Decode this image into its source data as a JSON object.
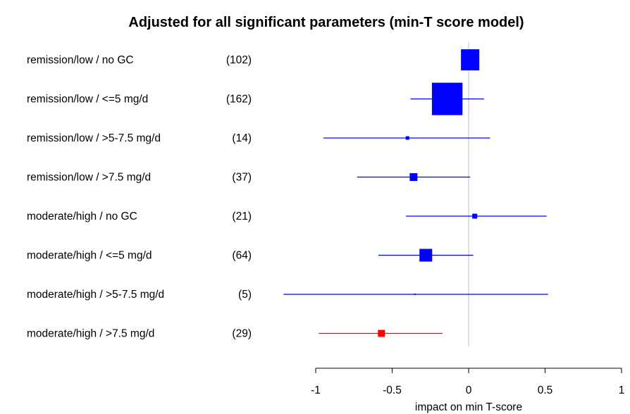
{
  "chart_data": {
    "type": "forest",
    "title": "Adjusted for all significant parameters (min-T score model)",
    "xlabel": "impact on min T-score",
    "xlim": [
      -1,
      1
    ],
    "xticks": [
      "-1",
      "-0.5",
      "0",
      "0.5",
      "1"
    ],
    "reference_line": 0,
    "rows": [
      {
        "label": "remission/low / no GC",
        "n": "(102)",
        "estimate": 0.0,
        "ci": [
          0.0,
          0.0
        ],
        "color": "#0000ff"
      },
      {
        "label": "remission/low / <=5 mg/d",
        "n": "(162)",
        "estimate": -0.14,
        "ci": [
          -0.38,
          0.1
        ],
        "color": "#0000ff"
      },
      {
        "label": "remission/low / >5-7.5 mg/d",
        "n": "(14)",
        "estimate": -0.4,
        "ci": [
          -0.95,
          0.14
        ],
        "color": "#0000ff"
      },
      {
        "label": "remission/low / >7.5 mg/d",
        "n": "(37)",
        "estimate": -0.36,
        "ci": [
          -0.73,
          0.01
        ],
        "color": "#0000ff"
      },
      {
        "label": "moderate/high / no GC",
        "n": "(21)",
        "estimate": 0.04,
        "ci": [
          -0.41,
          0.51
        ],
        "color": "#0000ff"
      },
      {
        "label": "moderate/high / <=5 mg/d",
        "n": "(64)",
        "estimate": -0.28,
        "ci": [
          -0.59,
          0.03
        ],
        "color": "#0000ff"
      },
      {
        "label": "moderate/high / >5-7.5 mg/d",
        "n": "(5)",
        "estimate": -0.35,
        "ci": [
          -1.21,
          0.52
        ],
        "color": "#0000ff"
      },
      {
        "label": "moderate/high / >7.5 mg/d",
        "n": "(29)",
        "estimate": -0.57,
        "ci": [
          -0.98,
          -0.17
        ],
        "color": "#ff0000"
      }
    ]
  }
}
